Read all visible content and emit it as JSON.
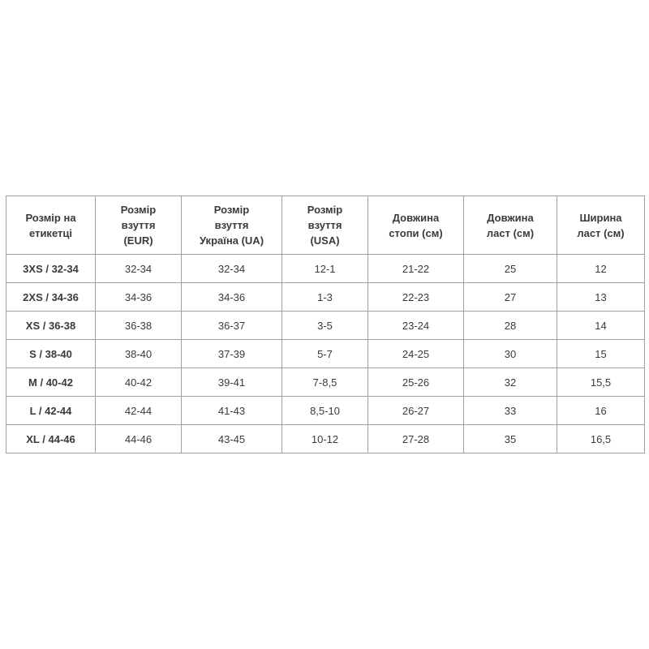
{
  "headers": [
    [
      "Розмір на",
      "етикетці"
    ],
    [
      "Розмір",
      "взуття",
      "(EUR)"
    ],
    [
      "Розмір",
      "взуття",
      "Україна (UA)"
    ],
    [
      "Розмір",
      "взуття",
      "(USA)"
    ],
    [
      "Довжина",
      "стопи (см)"
    ],
    [
      "Довжина",
      "ласт (см)"
    ],
    [
      "Ширина",
      "ласт (см)"
    ]
  ],
  "rows": [
    [
      "3XS / 32-34",
      "32-34",
      "32-34",
      "12-1",
      "21-22",
      "25",
      "12"
    ],
    [
      "2XS / 34-36",
      "34-36",
      "34-36",
      "1-3",
      "22-23",
      "27",
      "13"
    ],
    [
      "XS / 36-38",
      "36-38",
      "36-37",
      "3-5",
      "23-24",
      "28",
      "14"
    ],
    [
      "S / 38-40",
      "38-40",
      "37-39",
      "5-7",
      "24-25",
      "30",
      "15"
    ],
    [
      "M / 40-42",
      "40-42",
      "39-41",
      "7-8,5",
      "25-26",
      "32",
      "15,5"
    ],
    [
      "L / 42-44",
      "42-44",
      "41-43",
      "8,5-10",
      "26-27",
      "33",
      "16"
    ],
    [
      "XL / 44-46",
      "44-46",
      "43-45",
      "10-12",
      "27-28",
      "35",
      "16,5"
    ]
  ]
}
